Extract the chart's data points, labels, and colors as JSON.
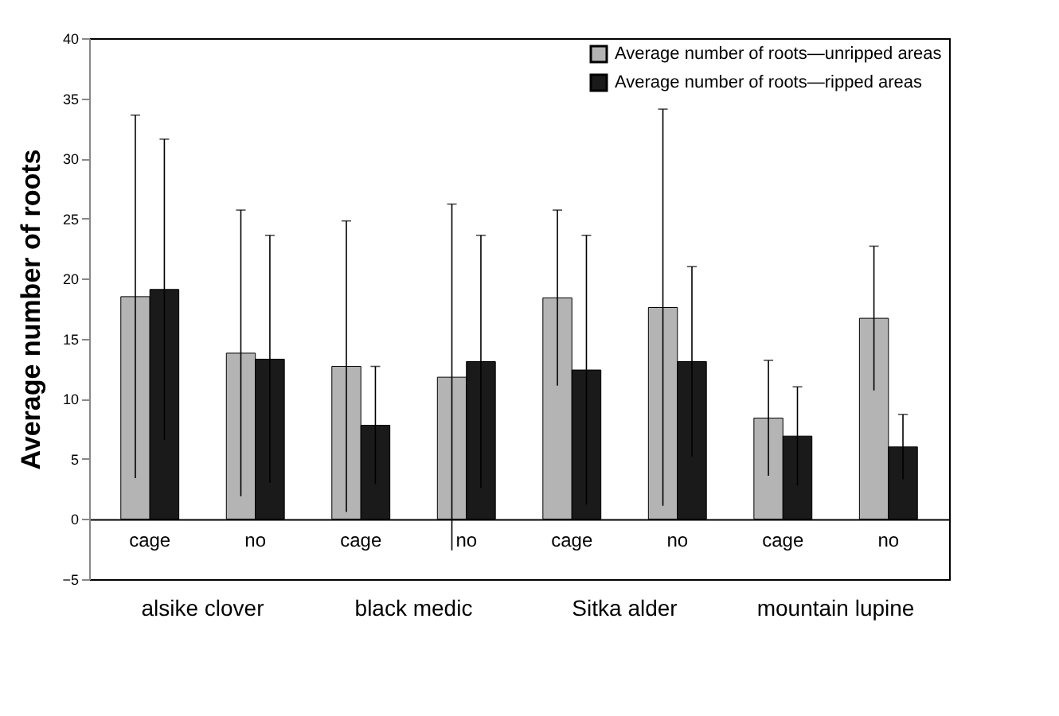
{
  "chart_data": {
    "type": "bar",
    "ylabel": "Average number of roots",
    "categories": [
      "cage",
      "no",
      "cage",
      "no",
      "cage",
      "no",
      "cage",
      "no"
    ],
    "series": [
      {
        "name": "Average number of roots—unripped areas",
        "color": "#b4b4b4",
        "values": [
          18.5,
          13.8,
          12.7,
          11.8,
          18.4,
          17.6,
          8.4,
          16.7
        ],
        "errors": [
          15.1,
          11.9,
          12.1,
          14.4,
          7.3,
          16.5,
          4.8,
          6.0
        ]
      },
      {
        "name": "Average number of roots—ripped areas",
        "color": "#1a1a1a",
        "values": [
          19.1,
          13.3,
          7.8,
          13.1,
          12.4,
          13.1,
          6.9,
          6.0
        ],
        "errors": [
          12.5,
          10.3,
          4.9,
          10.5,
          11.2,
          7.9,
          4.1,
          2.7
        ]
      }
    ],
    "annotations": [
      "alsike clover",
      "black medic",
      "Sitka alder",
      "mountain lupine"
    ],
    "ylim": [
      -5,
      40
    ],
    "yticks": [
      -5,
      0,
      5,
      10,
      15,
      20,
      25,
      30,
      35,
      40
    ],
    "grid": false,
    "legend": "top right"
  }
}
